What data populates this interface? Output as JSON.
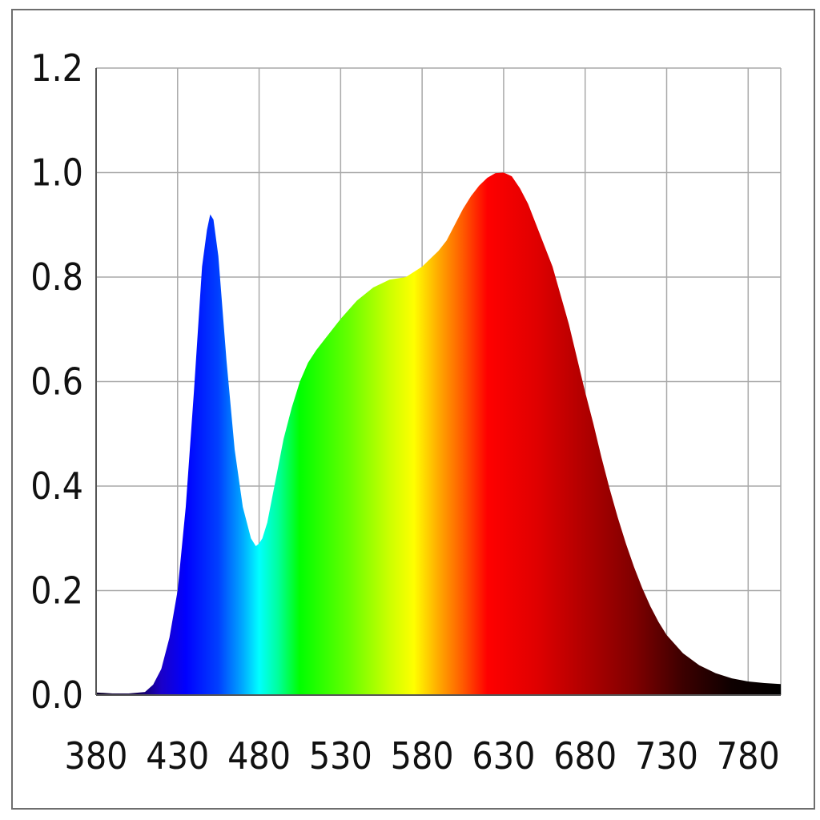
{
  "chart_data": {
    "type": "area",
    "title": "",
    "xlabel": "",
    "ylabel": "",
    "xlim": [
      380,
      800
    ],
    "ylim": [
      0,
      1.2
    ],
    "grid": true,
    "legend": "none",
    "x_ticks": [
      "380",
      "430",
      "480",
      "530",
      "580",
      "630",
      "680",
      "730",
      "780"
    ],
    "y_ticks": [
      "0.0",
      "0.2",
      "0.4",
      "0.6",
      "0.8",
      "1.0",
      "1.2"
    ],
    "fill": "visible-spectrum gradient by wavelength",
    "series": [
      {
        "x": [
          380,
          390,
          400,
          410,
          415,
          420,
          425,
          430,
          435,
          440,
          445,
          448,
          450,
          452,
          455,
          460,
          465,
          470,
          475,
          478,
          480,
          482,
          485,
          490,
          495,
          500,
          505,
          510,
          515,
          520,
          530,
          540,
          550,
          560,
          570,
          575,
          580,
          585,
          590,
          595,
          600,
          605,
          610,
          615,
          620,
          625,
          630,
          635,
          640,
          645,
          650,
          655,
          660,
          665,
          670,
          675,
          680,
          685,
          690,
          695,
          700,
          705,
          710,
          715,
          720,
          725,
          730,
          740,
          750,
          760,
          770,
          780,
          790,
          800
        ],
        "y": [
          0.005,
          0.003,
          0.003,
          0.006,
          0.02,
          0.05,
          0.11,
          0.2,
          0.36,
          0.58,
          0.82,
          0.89,
          0.92,
          0.91,
          0.84,
          0.64,
          0.47,
          0.36,
          0.3,
          0.285,
          0.29,
          0.3,
          0.33,
          0.41,
          0.49,
          0.55,
          0.6,
          0.636,
          0.66,
          0.68,
          0.72,
          0.755,
          0.78,
          0.795,
          0.8,
          0.81,
          0.82,
          0.835,
          0.85,
          0.87,
          0.9,
          0.93,
          0.955,
          0.975,
          0.99,
          0.999,
          1.0,
          0.993,
          0.97,
          0.94,
          0.9,
          0.86,
          0.82,
          0.765,
          0.71,
          0.645,
          0.58,
          0.52,
          0.455,
          0.395,
          0.34,
          0.29,
          0.245,
          0.205,
          0.17,
          0.14,
          0.115,
          0.08,
          0.057,
          0.042,
          0.032,
          0.026,
          0.023,
          0.021
        ]
      }
    ]
  }
}
